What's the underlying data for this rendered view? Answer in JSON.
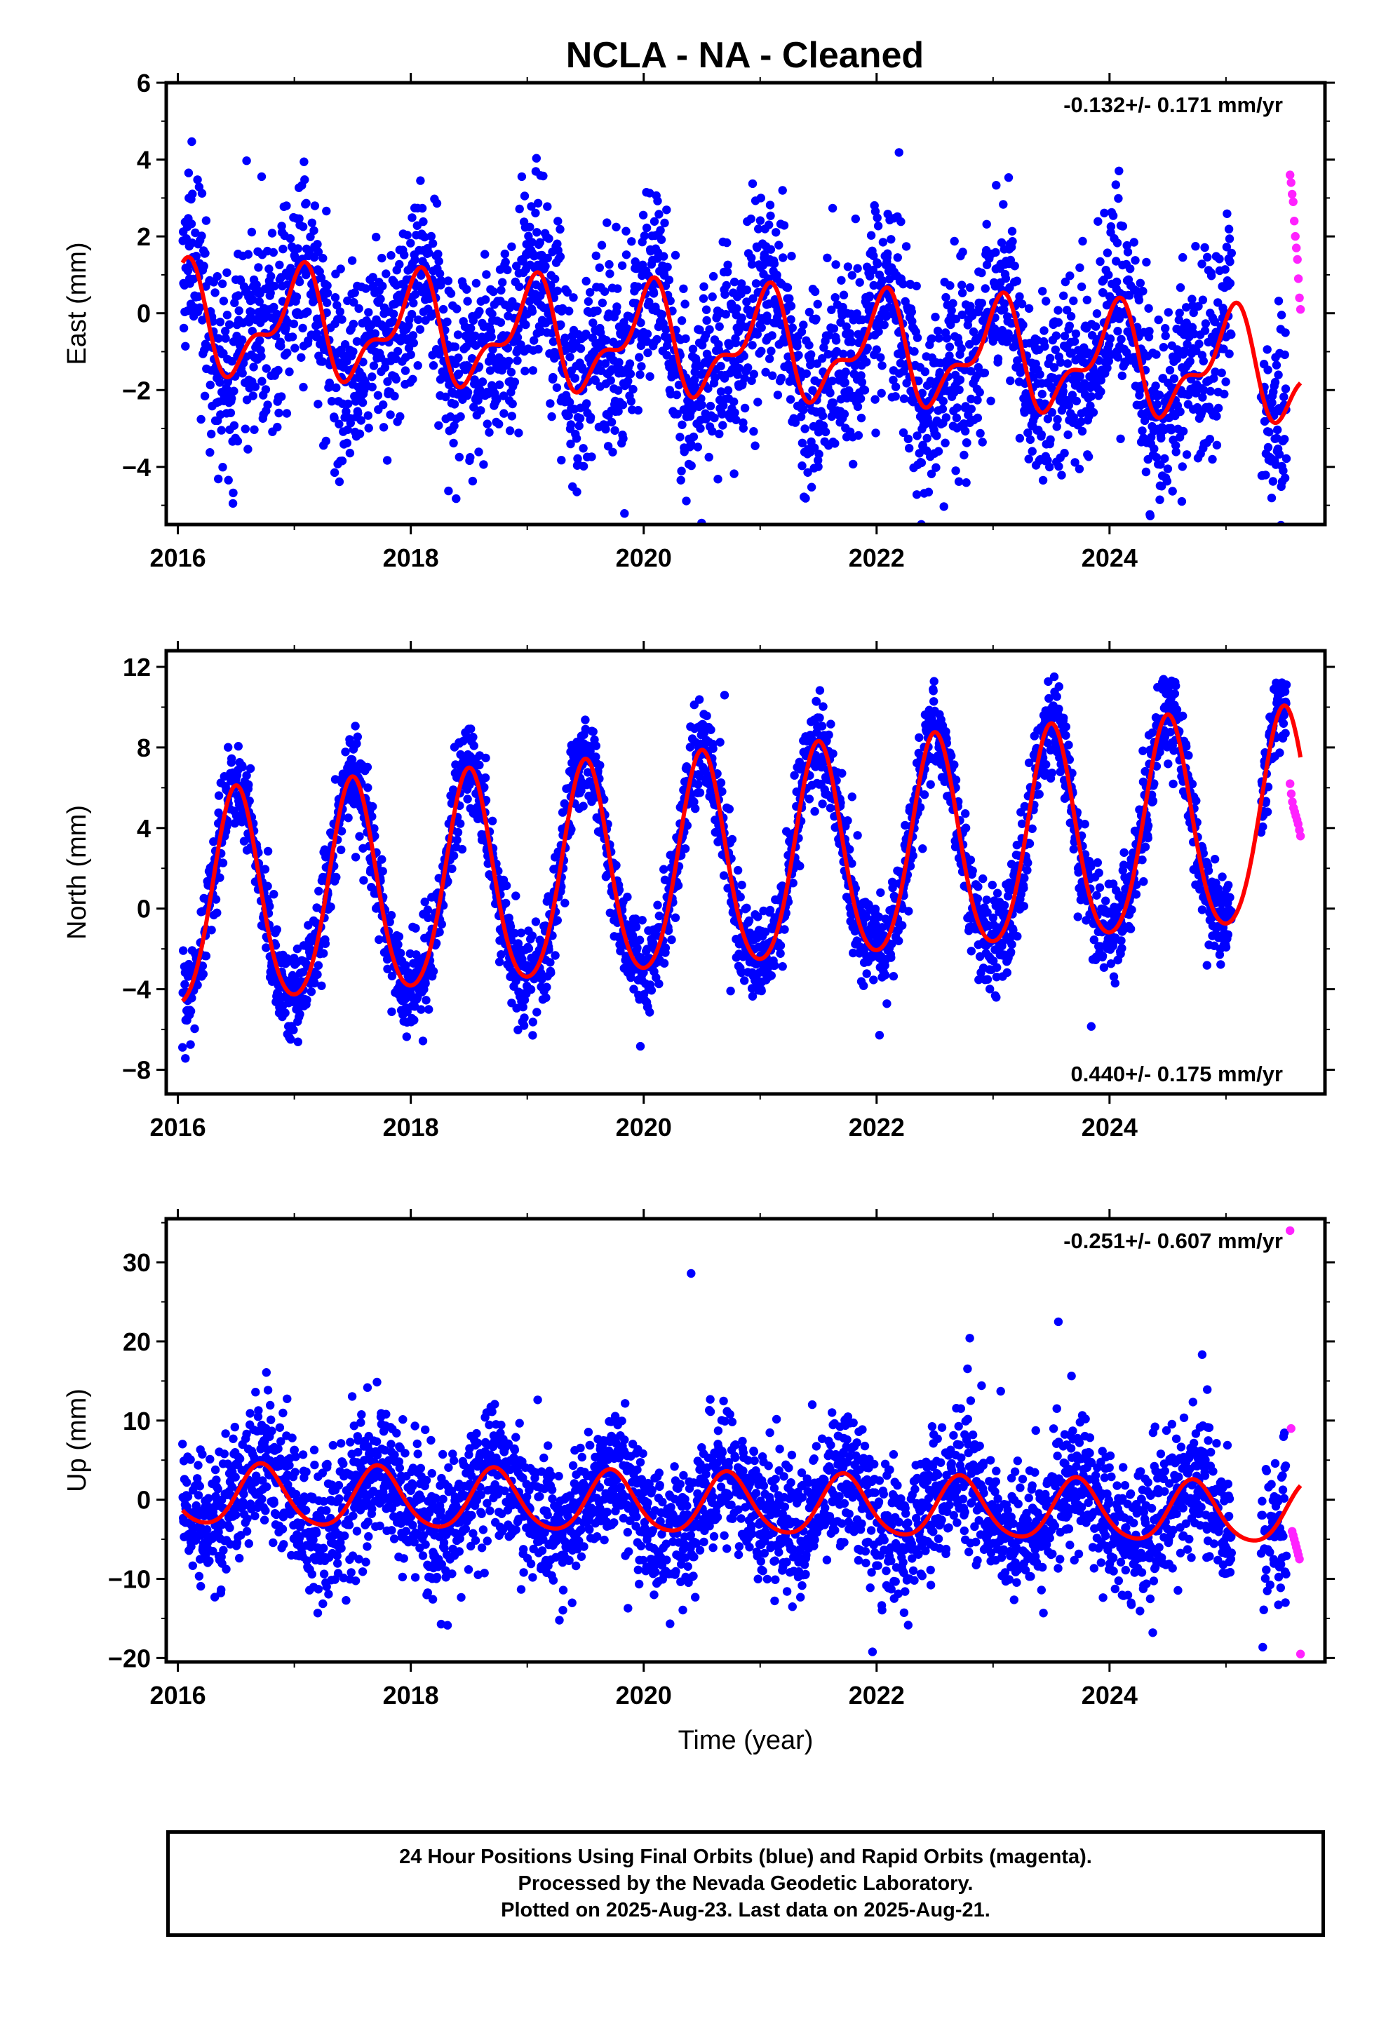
{
  "title": "NCLA  - NA - Cleaned",
  "colors": {
    "final_orbits": "#0000ff",
    "rapid_orbits": "#ff22ff",
    "model": "#ff0000",
    "frame": "#000000"
  },
  "chart_data": [
    {
      "type": "scatter",
      "ylabel": "East (mm)",
      "rate_text": "-0.132+/- 0.171 mm/yr",
      "rate_position": "top-right",
      "xlim": [
        2015.9,
        2025.85
      ],
      "ylim": [
        -5.5,
        6
      ],
      "xticks": [
        2016,
        2018,
        2020,
        2022,
        2024
      ],
      "xtick_labels": [
        "2016",
        "2018",
        "2020",
        "2022",
        "2024"
      ],
      "yticks": [
        -4,
        -2,
        0,
        2,
        4,
        6
      ],
      "ytick_labels": [
        "−4",
        "−2",
        "0",
        "2",
        "4",
        "6"
      ],
      "model": {
        "trend_mm_per_yr": -0.132,
        "intercept_at_2016": -0.2,
        "annual_amplitude": 1.2,
        "annual_peak_year_fraction": 0.03,
        "semiannual_amplitude": 0.6,
        "semiannual_peak_year_fraction": 0.12
      },
      "scatter": {
        "noise_sd": 1.25,
        "data_start": 2016.04,
        "final_end": 2025.52,
        "rapid_start": 2025.55,
        "data_end": 2025.64,
        "gaps": [
          [
            2025.05,
            2025.3
          ]
        ],
        "rapid_values": [
          3.6,
          3.4,
          3.1,
          2.9,
          2.4,
          2.0,
          1.7,
          1.4,
          0.9,
          0.4,
          0.1
        ]
      },
      "series": [
        {
          "name": "Final Orbits",
          "color": "#0000ff"
        },
        {
          "name": "Rapid Orbits",
          "color": "#ff22ff"
        },
        {
          "name": "Model fit",
          "color": "#ff0000"
        }
      ]
    },
    {
      "type": "scatter",
      "ylabel": "North (mm)",
      "rate_text": "0.440+/- 0.175 mm/yr",
      "rate_position": "bottom-right",
      "xlim": [
        2015.9,
        2025.85
      ],
      "ylim": [
        -9.2,
        12.8
      ],
      "xticks": [
        2016,
        2018,
        2020,
        2022,
        2024
      ],
      "xtick_labels": [
        "2016",
        "2018",
        "2020",
        "2022",
        "2024"
      ],
      "yticks": [
        -8,
        -4,
        0,
        4,
        8,
        12
      ],
      "ytick_labels": [
        "−8",
        "−4",
        "0",
        "4",
        "8",
        "12"
      ],
      "model": {
        "trend_mm_per_yr": 0.44,
        "intercept_at_2016": 0.0,
        "annual_amplitude": 5.3,
        "annual_peak_year_fraction": 0.5,
        "semiannual_amplitude": 0.6,
        "semiannual_peak_year_fraction": 0.5
      },
      "scatter": {
        "noise_sd": 1.15,
        "data_start": 2016.04,
        "final_end": 2025.52,
        "rapid_start": 2025.55,
        "data_end": 2025.64,
        "gaps": [
          [
            2025.05,
            2025.3
          ]
        ],
        "rapid_values": [
          6.2,
          5.7,
          5.3,
          5.0,
          4.8,
          4.6,
          4.4,
          4.2,
          3.9,
          3.6
        ]
      },
      "series": [
        {
          "name": "Final Orbits",
          "color": "#0000ff"
        },
        {
          "name": "Rapid Orbits",
          "color": "#ff22ff"
        },
        {
          "name": "Model fit",
          "color": "#ff0000"
        }
      ]
    },
    {
      "type": "scatter",
      "ylabel": "Up (mm)",
      "xlabel": "Time (year)",
      "rate_text": "-0.251+/- 0.607 mm/yr",
      "rate_position": "top-right",
      "xlim": [
        2015.9,
        2025.85
      ],
      "ylim": [
        -20.5,
        35.5
      ],
      "xticks": [
        2016,
        2018,
        2020,
        2022,
        2024
      ],
      "xtick_labels": [
        "2016",
        "2018",
        "2020",
        "2022",
        "2024"
      ],
      "yticks": [
        -20,
        -10,
        0,
        10,
        20,
        30
      ],
      "ytick_labels": [
        "−20",
        "−10",
        "0",
        "10",
        "20",
        "30"
      ],
      "model": {
        "trend_mm_per_yr": -0.251,
        "intercept_at_2016": 0.5,
        "annual_amplitude": 3.8,
        "annual_peak_year_fraction": 0.72,
        "semiannual_amplitude": 0.5,
        "semiannual_peak_year_fraction": 0.2
      },
      "scatter": {
        "noise_sd": 4.2,
        "data_start": 2016.04,
        "final_end": 2025.52,
        "rapid_start": 2025.55,
        "data_end": 2025.64,
        "gaps": [
          [
            2025.05,
            2025.3
          ]
        ],
        "rapid_values": [
          34,
          9,
          -4,
          -4.5,
          -5,
          -5.5,
          -6,
          -6.5,
          -7,
          -7.5,
          -19.5
        ]
      },
      "series": [
        {
          "name": "Final Orbits",
          "color": "#0000ff"
        },
        {
          "name": "Rapid Orbits",
          "color": "#ff22ff"
        },
        {
          "name": "Model fit",
          "color": "#ff0000"
        }
      ]
    }
  ],
  "caption": {
    "line1": "24 Hour Positions Using Final Orbits (blue) and Rapid Orbits (magenta).",
    "line2": "Processed by the Nevada Geodetic Laboratory.",
    "line3": "Plotted on 2025-Aug-23. Last data on 2025-Aug-21."
  }
}
